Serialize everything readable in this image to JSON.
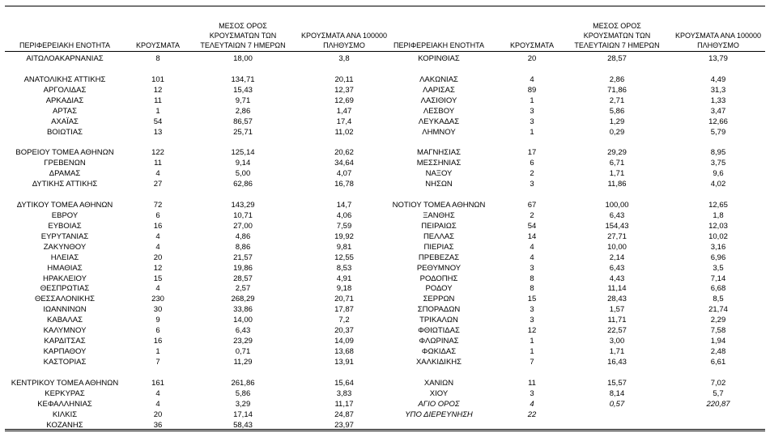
{
  "table": {
    "header": [
      "ΠΕΡΙΦΕΡΕΙΑΚΗ ΕΝΟΤΗΤΑ",
      "ΚΡΟΥΣΜΑΤΑ",
      "ΜΕΣΟΣ ΟΡΟΣ ΚΡΟΥΣΜΑΤΩΝ ΤΩΝ ΤΕΛΕΥΤΑΙΩΝ 7 ΗΜΕΡΩΝ",
      "ΚΡΟΥΣΜΑΤΑ ΑΝΑ 100000 ΠΛΗΘΥΣΜΟ"
    ],
    "left_rows": [
      [
        "ΑΙΤΩΛΟΑΚΑΡΝΑΝΙΑΣ",
        "8",
        "18,00",
        "3,8"
      ],
      null,
      [
        "ΑΝΑΤΟΛΙΚΗΣ ΑΤΤΙΚΗΣ",
        "101",
        "134,71",
        "20,11"
      ],
      [
        "ΑΡΓΟΛΙΔΑΣ",
        "12",
        "15,43",
        "12,37"
      ],
      [
        "ΑΡΚΑΔΙΑΣ",
        "11",
        "9,71",
        "12,69"
      ],
      [
        "ΑΡΤΑΣ",
        "1",
        "2,86",
        "1,47"
      ],
      [
        "ΑΧΑΪΑΣ",
        "54",
        "86,57",
        "17,4"
      ],
      [
        "ΒΟΙΩΤΙΑΣ",
        "13",
        "25,71",
        "11,02"
      ],
      null,
      [
        "ΒΟΡΕΙΟΥ ΤΟΜΕΑ ΑΘΗΝΩΝ",
        "122",
        "125,14",
        "20,62"
      ],
      [
        "ΓΡΕΒΕΝΩΝ",
        "11",
        "9,14",
        "34,64"
      ],
      [
        "ΔΡΑΜΑΣ",
        "4",
        "5,00",
        "4,07"
      ],
      [
        "ΔΥΤΙΚΗΣ ΑΤΤΙΚΗΣ",
        "27",
        "62,86",
        "16,78"
      ],
      null,
      [
        "ΔΥΤΙΚΟΥ ΤΟΜΕΑ ΑΘΗΝΩΝ",
        "72",
        "143,29",
        "14,7"
      ],
      [
        "ΕΒΡΟΥ",
        "6",
        "10,71",
        "4,06"
      ],
      [
        "ΕΥΒΟΙΑΣ",
        "16",
        "27,00",
        "7,59"
      ],
      [
        "ΕΥΡΥΤΑΝΙΑΣ",
        "4",
        "4,86",
        "19,92"
      ],
      [
        "ΖΑΚΥΝΘΟΥ",
        "4",
        "8,86",
        "9,81"
      ],
      [
        "ΗΛΕΙΑΣ",
        "20",
        "21,57",
        "12,55"
      ],
      [
        "ΗΜΑΘΙΑΣ",
        "12",
        "19,86",
        "8,53"
      ],
      [
        "ΗΡΑΚΛΕΙΟΥ",
        "15",
        "28,57",
        "4,91"
      ],
      [
        "ΘΕΣΠΡΩΤΙΑΣ",
        "4",
        "2,57",
        "9,18"
      ],
      [
        "ΘΕΣΣΑΛΟΝΙΚΗΣ",
        "230",
        "268,29",
        "20,71"
      ],
      [
        "ΙΩΑΝΝΙΝΩΝ",
        "30",
        "33,86",
        "17,87"
      ],
      [
        "ΚΑΒΑΛΑΣ",
        "9",
        "14,00",
        "7,2"
      ],
      [
        "ΚΑΛΥΜΝΟΥ",
        "6",
        "6,43",
        "20,37"
      ],
      [
        "ΚΑΡΔΙΤΣΑΣ",
        "16",
        "23,29",
        "14,09"
      ],
      [
        "ΚΑΡΠΑΘΟΥ",
        "1",
        "0,71",
        "13,68"
      ],
      [
        "ΚΑΣΤΟΡΙΑΣ",
        "7",
        "11,29",
        "13,91"
      ],
      null,
      [
        "ΚΕΝΤΡΙΚΟΥ ΤΟΜΕΑ ΑΘΗΝΩΝ",
        "161",
        "261,86",
        "15,64"
      ],
      [
        "ΚΕΡΚΥΡΑΣ",
        "4",
        "5,86",
        "3,83"
      ],
      [
        "ΚΕΦΑΛΛΗΝΙΑΣ",
        "4",
        "3,29",
        "11,17"
      ],
      [
        "ΚΙΛΚΙΣ",
        "20",
        "17,14",
        "24,87"
      ],
      [
        "ΚΟΖΑΝΗΣ",
        "36",
        "58,43",
        "23,97"
      ]
    ],
    "right_rows": [
      [
        "ΚΟΡΙΝΘΙΑΣ",
        "20",
        "28,57",
        "13,79"
      ],
      null,
      [
        "ΛΑΚΩΝΙΑΣ",
        "4",
        "2,86",
        "4,49"
      ],
      [
        "ΛΑΡΙΣΑΣ",
        "89",
        "71,86",
        "31,3"
      ],
      [
        "ΛΑΣΙΘΙΟΥ",
        "1",
        "2,71",
        "1,33"
      ],
      [
        "ΛΕΣΒΟΥ",
        "3",
        "5,86",
        "3,47"
      ],
      [
        "ΛΕΥΚΑΔΑΣ",
        "3",
        "1,29",
        "12,66"
      ],
      [
        "ΛΗΜΝΟΥ",
        "1",
        "0,29",
        "5,79"
      ],
      null,
      [
        "ΜΑΓΝΗΣΙΑΣ",
        "17",
        "29,29",
        "8,95"
      ],
      [
        "ΜΕΣΣΗΝΙΑΣ",
        "6",
        "6,71",
        "3,75"
      ],
      [
        "ΝΑΞΟΥ",
        "2",
        "1,71",
        "9,6"
      ],
      [
        "ΝΗΣΩΝ",
        "3",
        "11,86",
        "4,02"
      ],
      null,
      [
        "ΝΟΤΙΟΥ ΤΟΜΕΑ ΑΘΗΝΩΝ",
        "67",
        "100,00",
        "12,65"
      ],
      [
        "ΞΑΝΘΗΣ",
        "2",
        "6,43",
        "1,8"
      ],
      [
        "ΠΕΙΡΑΙΩΣ",
        "54",
        "154,43",
        "12,03"
      ],
      [
        "ΠΕΛΛΑΣ",
        "14",
        "27,71",
        "10,02"
      ],
      [
        "ΠΙΕΡΙΑΣ",
        "4",
        "10,00",
        "3,16"
      ],
      [
        "ΠΡΕΒΕΖΑΣ",
        "4",
        "2,14",
        "6,96"
      ],
      [
        "ΡΕΘΥΜΝΟΥ",
        "3",
        "6,43",
        "3,5"
      ],
      [
        "ΡΟΔΟΠΗΣ",
        "8",
        "4,43",
        "7,14"
      ],
      [
        "ΡΟΔΟΥ",
        "8",
        "11,14",
        "6,68"
      ],
      [
        "ΣΕΡΡΩΝ",
        "15",
        "28,43",
        "8,5"
      ],
      [
        "ΣΠΟΡΑΔΩΝ",
        "3",
        "1,57",
        "21,74"
      ],
      [
        "ΤΡΙΚΑΛΩΝ",
        "3",
        "11,71",
        "2,29"
      ],
      [
        "ΦΘΙΩΤΙΔΑΣ",
        "12",
        "22,57",
        "7,58"
      ],
      [
        "ΦΛΩΡΙΝΑΣ",
        "1",
        "3,00",
        "1,94"
      ],
      [
        "ΦΩΚΙΔΑΣ",
        "1",
        "1,71",
        "2,48"
      ],
      [
        "ΧΑΛΚΙΔΙΚΗΣ",
        "7",
        "16,43",
        "6,61"
      ],
      null,
      [
        "ΧΑΝΙΩΝ",
        "11",
        "15,57",
        "7,02"
      ],
      [
        "ΧΙΟΥ",
        "3",
        "8,14",
        "5,7"
      ],
      [
        "ΑΓΙΟ ΟΡΟΣ",
        "4",
        "0,57",
        "220,87"
      ],
      [
        "ΥΠΟ ΔΙΕΡΕΥΝΗΣΗ",
        "22"
      ]
    ],
    "right_italic_rows": [
      33,
      34
    ]
  }
}
